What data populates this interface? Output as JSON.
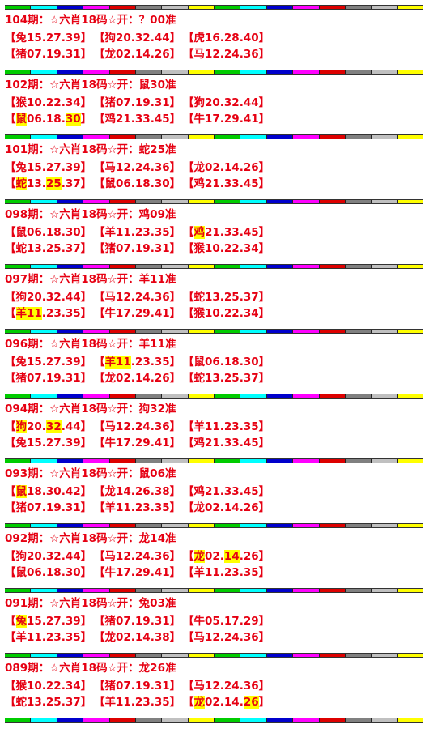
{
  "colors": {
    "text": "#e60012",
    "highlight": "#ffff00",
    "bar_segments": [
      "#00cc00",
      "#00ffff",
      "#0000cc",
      "#ff00ff",
      "#dd0000",
      "#808080",
      "#c0c0c0",
      "#ffff00",
      "#00cc00",
      "#00ffff",
      "#0000cc",
      "#ff00ff",
      "#dd0000",
      "#808080",
      "#c0c0c0",
      "#ffff00"
    ]
  },
  "records": [
    {
      "title": "104期：☆六肖18码☆开：？00准",
      "row1": [
        {
          "segs": [
            {
              "t": "【"
            },
            {
              "t": "兔15.27.39"
            },
            {
              "t": "】"
            }
          ]
        },
        {
          "segs": [
            {
              "t": "【"
            },
            {
              "t": "狗20.32.44"
            },
            {
              "t": "】"
            }
          ]
        },
        {
          "segs": [
            {
              "t": "【"
            },
            {
              "t": "虎16.28.40"
            },
            {
              "t": "】"
            }
          ]
        }
      ],
      "row2": [
        {
          "segs": [
            {
              "t": "【"
            },
            {
              "t": "猪07.19.31"
            },
            {
              "t": "】"
            }
          ]
        },
        {
          "segs": [
            {
              "t": "【"
            },
            {
              "t": "龙02.14.26"
            },
            {
              "t": "】"
            }
          ]
        },
        {
          "segs": [
            {
              "t": "【"
            },
            {
              "t": "马12.24.36"
            },
            {
              "t": "】"
            }
          ]
        }
      ]
    },
    {
      "title": "102期：☆六肖18码☆开：鼠30准",
      "row1": [
        {
          "segs": [
            {
              "t": "【"
            },
            {
              "t": "猴10.22.34"
            },
            {
              "t": "】"
            }
          ]
        },
        {
          "segs": [
            {
              "t": "【"
            },
            {
              "t": "猪07.19.31"
            },
            {
              "t": "】"
            }
          ]
        },
        {
          "segs": [
            {
              "t": "【"
            },
            {
              "t": "狗20.32.44"
            },
            {
              "t": "】"
            }
          ]
        }
      ],
      "row2": [
        {
          "segs": [
            {
              "t": "【"
            },
            {
              "t": "鼠",
              "h": true
            },
            {
              "t": "06.18."
            },
            {
              "t": "30",
              "h": true
            },
            {
              "t": "】"
            }
          ]
        },
        {
          "segs": [
            {
              "t": "【"
            },
            {
              "t": "鸡21.33.45"
            },
            {
              "t": "】"
            }
          ]
        },
        {
          "segs": [
            {
              "t": "【"
            },
            {
              "t": "牛17.29.41"
            },
            {
              "t": "】"
            }
          ]
        }
      ]
    },
    {
      "title": "101期：☆六肖18码☆开：蛇25准",
      "row1": [
        {
          "segs": [
            {
              "t": "【"
            },
            {
              "t": "兔15.27.39"
            },
            {
              "t": "】"
            }
          ]
        },
        {
          "segs": [
            {
              "t": "【"
            },
            {
              "t": "马12.24.36"
            },
            {
              "t": "】"
            }
          ]
        },
        {
          "segs": [
            {
              "t": "【"
            },
            {
              "t": "龙02.14.26"
            },
            {
              "t": "】"
            }
          ]
        }
      ],
      "row2": [
        {
          "segs": [
            {
              "t": "【"
            },
            {
              "t": "蛇",
              "h": true
            },
            {
              "t": "13."
            },
            {
              "t": "25",
              "h": true
            },
            {
              "t": ".37】"
            }
          ]
        },
        {
          "segs": [
            {
              "t": "【"
            },
            {
              "t": "鼠06.18.30"
            },
            {
              "t": "】"
            }
          ]
        },
        {
          "segs": [
            {
              "t": "【"
            },
            {
              "t": "鸡21.33.45"
            },
            {
              "t": "】"
            }
          ]
        }
      ]
    },
    {
      "title": "098期：☆六肖18码☆开：鸡09准",
      "row1": [
        {
          "segs": [
            {
              "t": "【"
            },
            {
              "t": "鼠06.18.30"
            },
            {
              "t": "】"
            }
          ]
        },
        {
          "segs": [
            {
              "t": "【"
            },
            {
              "t": "羊11.23.35"
            },
            {
              "t": "】"
            }
          ]
        },
        {
          "segs": [
            {
              "t": "【"
            },
            {
              "t": "鸡",
              "h": true
            },
            {
              "t": "21.33.45】"
            }
          ]
        }
      ],
      "row2": [
        {
          "segs": [
            {
              "t": "【"
            },
            {
              "t": "蛇13.25.37"
            },
            {
              "t": "】"
            }
          ]
        },
        {
          "segs": [
            {
              "t": "【"
            },
            {
              "t": "猪07.19.31"
            },
            {
              "t": "】"
            }
          ]
        },
        {
          "segs": [
            {
              "t": "【"
            },
            {
              "t": "猴10.22.34"
            },
            {
              "t": "】"
            }
          ]
        }
      ]
    },
    {
      "title": "097期：☆六肖18码☆开：羊11准",
      "row1": [
        {
          "segs": [
            {
              "t": "【"
            },
            {
              "t": "狗20.32.44"
            },
            {
              "t": "】"
            }
          ]
        },
        {
          "segs": [
            {
              "t": "【"
            },
            {
              "t": "马12.24.36"
            },
            {
              "t": "】"
            }
          ]
        },
        {
          "segs": [
            {
              "t": "【"
            },
            {
              "t": "蛇13.25.37"
            },
            {
              "t": "】"
            }
          ]
        }
      ],
      "row2": [
        {
          "segs": [
            {
              "t": "【"
            },
            {
              "t": "羊11",
              "h": true
            },
            {
              "t": ".23.35】"
            }
          ]
        },
        {
          "segs": [
            {
              "t": "【"
            },
            {
              "t": "牛17.29.41"
            },
            {
              "t": "】"
            }
          ]
        },
        {
          "segs": [
            {
              "t": "【"
            },
            {
              "t": "猴10.22.34"
            },
            {
              "t": "】"
            }
          ]
        }
      ]
    },
    {
      "title": "096期：☆六肖18码☆开：羊11准",
      "row1": [
        {
          "segs": [
            {
              "t": "【"
            },
            {
              "t": "兔15.27.39"
            },
            {
              "t": "】"
            }
          ]
        },
        {
          "segs": [
            {
              "t": "【"
            },
            {
              "t": "羊11",
              "h": true
            },
            {
              "t": ".23.35】"
            }
          ]
        },
        {
          "segs": [
            {
              "t": "【"
            },
            {
              "t": "鼠06.18.30"
            },
            {
              "t": "】"
            }
          ]
        }
      ],
      "row2": [
        {
          "segs": [
            {
              "t": "【"
            },
            {
              "t": "猪07.19.31"
            },
            {
              "t": "】"
            }
          ]
        },
        {
          "segs": [
            {
              "t": "【"
            },
            {
              "t": "龙02.14.26"
            },
            {
              "t": "】"
            }
          ]
        },
        {
          "segs": [
            {
              "t": "【"
            },
            {
              "t": "蛇13.25.37"
            },
            {
              "t": "】"
            }
          ]
        }
      ]
    },
    {
      "title": "094期：☆六肖18码☆开：狗32准",
      "row1": [
        {
          "segs": [
            {
              "t": "【"
            },
            {
              "t": "狗",
              "h": true
            },
            {
              "t": "20."
            },
            {
              "t": "32",
              "h": true
            },
            {
              "t": ".44】"
            }
          ]
        },
        {
          "segs": [
            {
              "t": "【"
            },
            {
              "t": "马12.24.36"
            },
            {
              "t": "】"
            }
          ]
        },
        {
          "segs": [
            {
              "t": "【"
            },
            {
              "t": "羊11.23.35"
            },
            {
              "t": "】"
            }
          ]
        }
      ],
      "row2": [
        {
          "segs": [
            {
              "t": "【"
            },
            {
              "t": "兔15.27.39"
            },
            {
              "t": "】"
            }
          ]
        },
        {
          "segs": [
            {
              "t": "【"
            },
            {
              "t": "牛17.29.41"
            },
            {
              "t": "】"
            }
          ]
        },
        {
          "segs": [
            {
              "t": "【"
            },
            {
              "t": "鸡21.33.45"
            },
            {
              "t": "】"
            }
          ]
        }
      ]
    },
    {
      "title": "093期：☆六肖18码☆开：鼠06准",
      "row1": [
        {
          "segs": [
            {
              "t": "【"
            },
            {
              "t": "鼠",
              "h": true
            },
            {
              "t": "18.30.42】"
            }
          ]
        },
        {
          "segs": [
            {
              "t": "【"
            },
            {
              "t": "龙14.26.38"
            },
            {
              "t": "】"
            }
          ]
        },
        {
          "segs": [
            {
              "t": "【"
            },
            {
              "t": "鸡21.33.45"
            },
            {
              "t": "】"
            }
          ]
        }
      ],
      "row2": [
        {
          "segs": [
            {
              "t": "【"
            },
            {
              "t": "猪07.19.31"
            },
            {
              "t": "】"
            }
          ]
        },
        {
          "segs": [
            {
              "t": "【"
            },
            {
              "t": "羊11.23.35"
            },
            {
              "t": "】"
            }
          ]
        },
        {
          "segs": [
            {
              "t": "【"
            },
            {
              "t": "龙02.14.26"
            },
            {
              "t": "】"
            }
          ]
        }
      ]
    },
    {
      "title": "092期：☆六肖18码☆开：龙14准",
      "row1": [
        {
          "segs": [
            {
              "t": "【"
            },
            {
              "t": "狗20.32.44"
            },
            {
              "t": "】"
            }
          ]
        },
        {
          "segs": [
            {
              "t": "【"
            },
            {
              "t": "马12.24.36"
            },
            {
              "t": "】"
            }
          ]
        },
        {
          "segs": [
            {
              "t": "【"
            },
            {
              "t": "龙",
              "h": true
            },
            {
              "t": "02."
            },
            {
              "t": "14",
              "h": true
            },
            {
              "t": ".26】"
            }
          ]
        }
      ],
      "row2": [
        {
          "segs": [
            {
              "t": "【"
            },
            {
              "t": "鼠06.18.30"
            },
            {
              "t": "】"
            }
          ]
        },
        {
          "segs": [
            {
              "t": "【"
            },
            {
              "t": "牛17.29.41"
            },
            {
              "t": "】"
            }
          ]
        },
        {
          "segs": [
            {
              "t": "【"
            },
            {
              "t": "羊11.23.35"
            },
            {
              "t": "】"
            }
          ]
        }
      ]
    },
    {
      "title": "091期：☆六肖18码☆开：兔03准",
      "row1": [
        {
          "segs": [
            {
              "t": "【"
            },
            {
              "t": "兔",
              "h": true
            },
            {
              "t": "15.27.39】"
            }
          ]
        },
        {
          "segs": [
            {
              "t": "【"
            },
            {
              "t": "猪07.19.31"
            },
            {
              "t": "】"
            }
          ]
        },
        {
          "segs": [
            {
              "t": "【"
            },
            {
              "t": "牛05.17.29"
            },
            {
              "t": "】"
            }
          ]
        }
      ],
      "row2": [
        {
          "segs": [
            {
              "t": "【"
            },
            {
              "t": "羊11.23.35"
            },
            {
              "t": "】"
            }
          ]
        },
        {
          "segs": [
            {
              "t": "【"
            },
            {
              "t": "龙02.14.38"
            },
            {
              "t": "】"
            }
          ]
        },
        {
          "segs": [
            {
              "t": "【"
            },
            {
              "t": "马12.24.36"
            },
            {
              "t": "】"
            }
          ]
        }
      ]
    },
    {
      "title": "089期：☆六肖18码☆开：龙26准",
      "row1": [
        {
          "segs": [
            {
              "t": "【"
            },
            {
              "t": "猴10.22.34"
            },
            {
              "t": "】"
            }
          ]
        },
        {
          "segs": [
            {
              "t": "【"
            },
            {
              "t": "猪07.19.31"
            },
            {
              "t": "】"
            }
          ]
        },
        {
          "segs": [
            {
              "t": "【"
            },
            {
              "t": "马12.24.36"
            },
            {
              "t": "】"
            }
          ]
        }
      ],
      "row2": [
        {
          "segs": [
            {
              "t": "【"
            },
            {
              "t": "蛇13.25.37"
            },
            {
              "t": "】"
            }
          ]
        },
        {
          "segs": [
            {
              "t": "【"
            },
            {
              "t": "羊11.23.35"
            },
            {
              "t": "】"
            }
          ]
        },
        {
          "segs": [
            {
              "t": "【"
            },
            {
              "t": "龙",
              "h": true
            },
            {
              "t": "02.14."
            },
            {
              "t": "26",
              "h": true
            },
            {
              "t": "】"
            }
          ]
        }
      ]
    }
  ]
}
